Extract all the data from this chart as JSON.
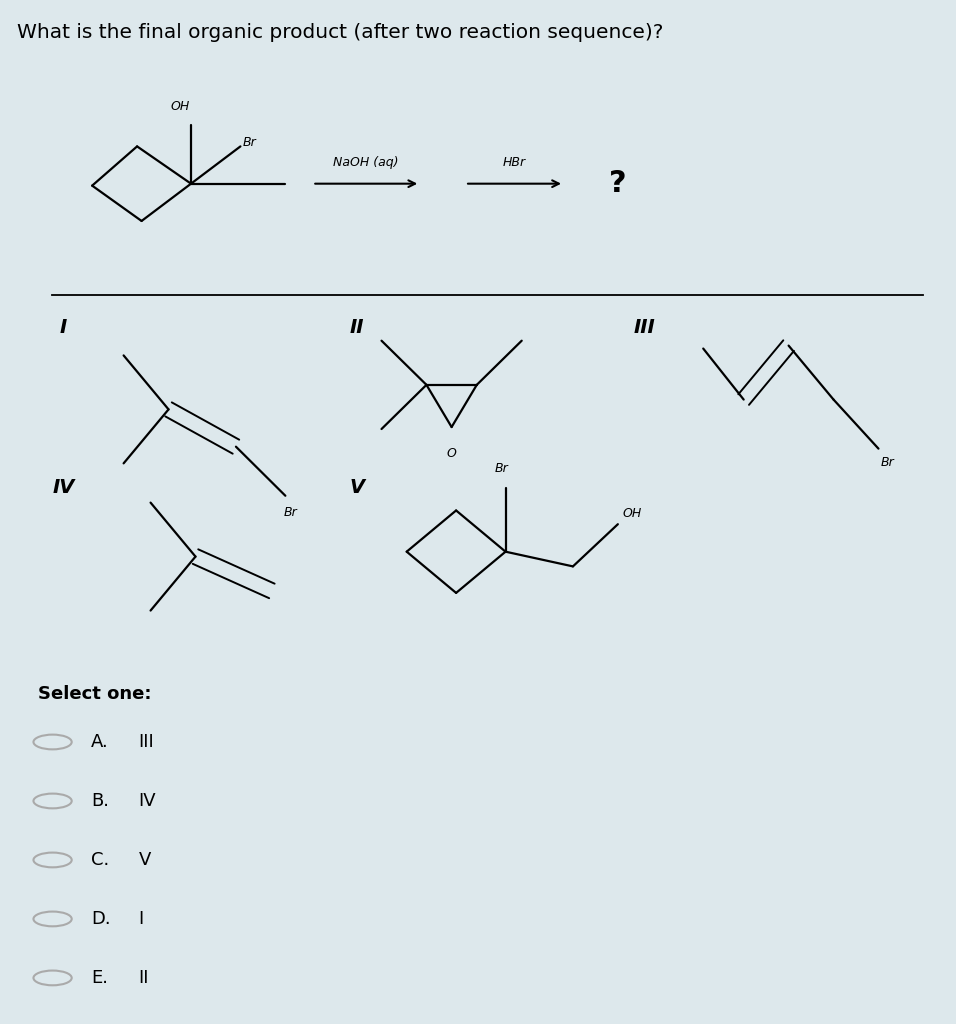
{
  "title": "What is the final organic product (after two reaction sequence)?",
  "title_fontsize": 14.5,
  "bg_color": "#dde8ec",
  "panel_color": "#ffffff",
  "text_color": "#000000",
  "select_one": "Select one:",
  "options": [
    {
      "letter": "A.",
      "label": "III"
    },
    {
      "letter": "B.",
      "label": "IV"
    },
    {
      "letter": "C.",
      "label": "V"
    },
    {
      "letter": "D.",
      "label": "I"
    },
    {
      "letter": "E.",
      "label": "II"
    }
  ]
}
